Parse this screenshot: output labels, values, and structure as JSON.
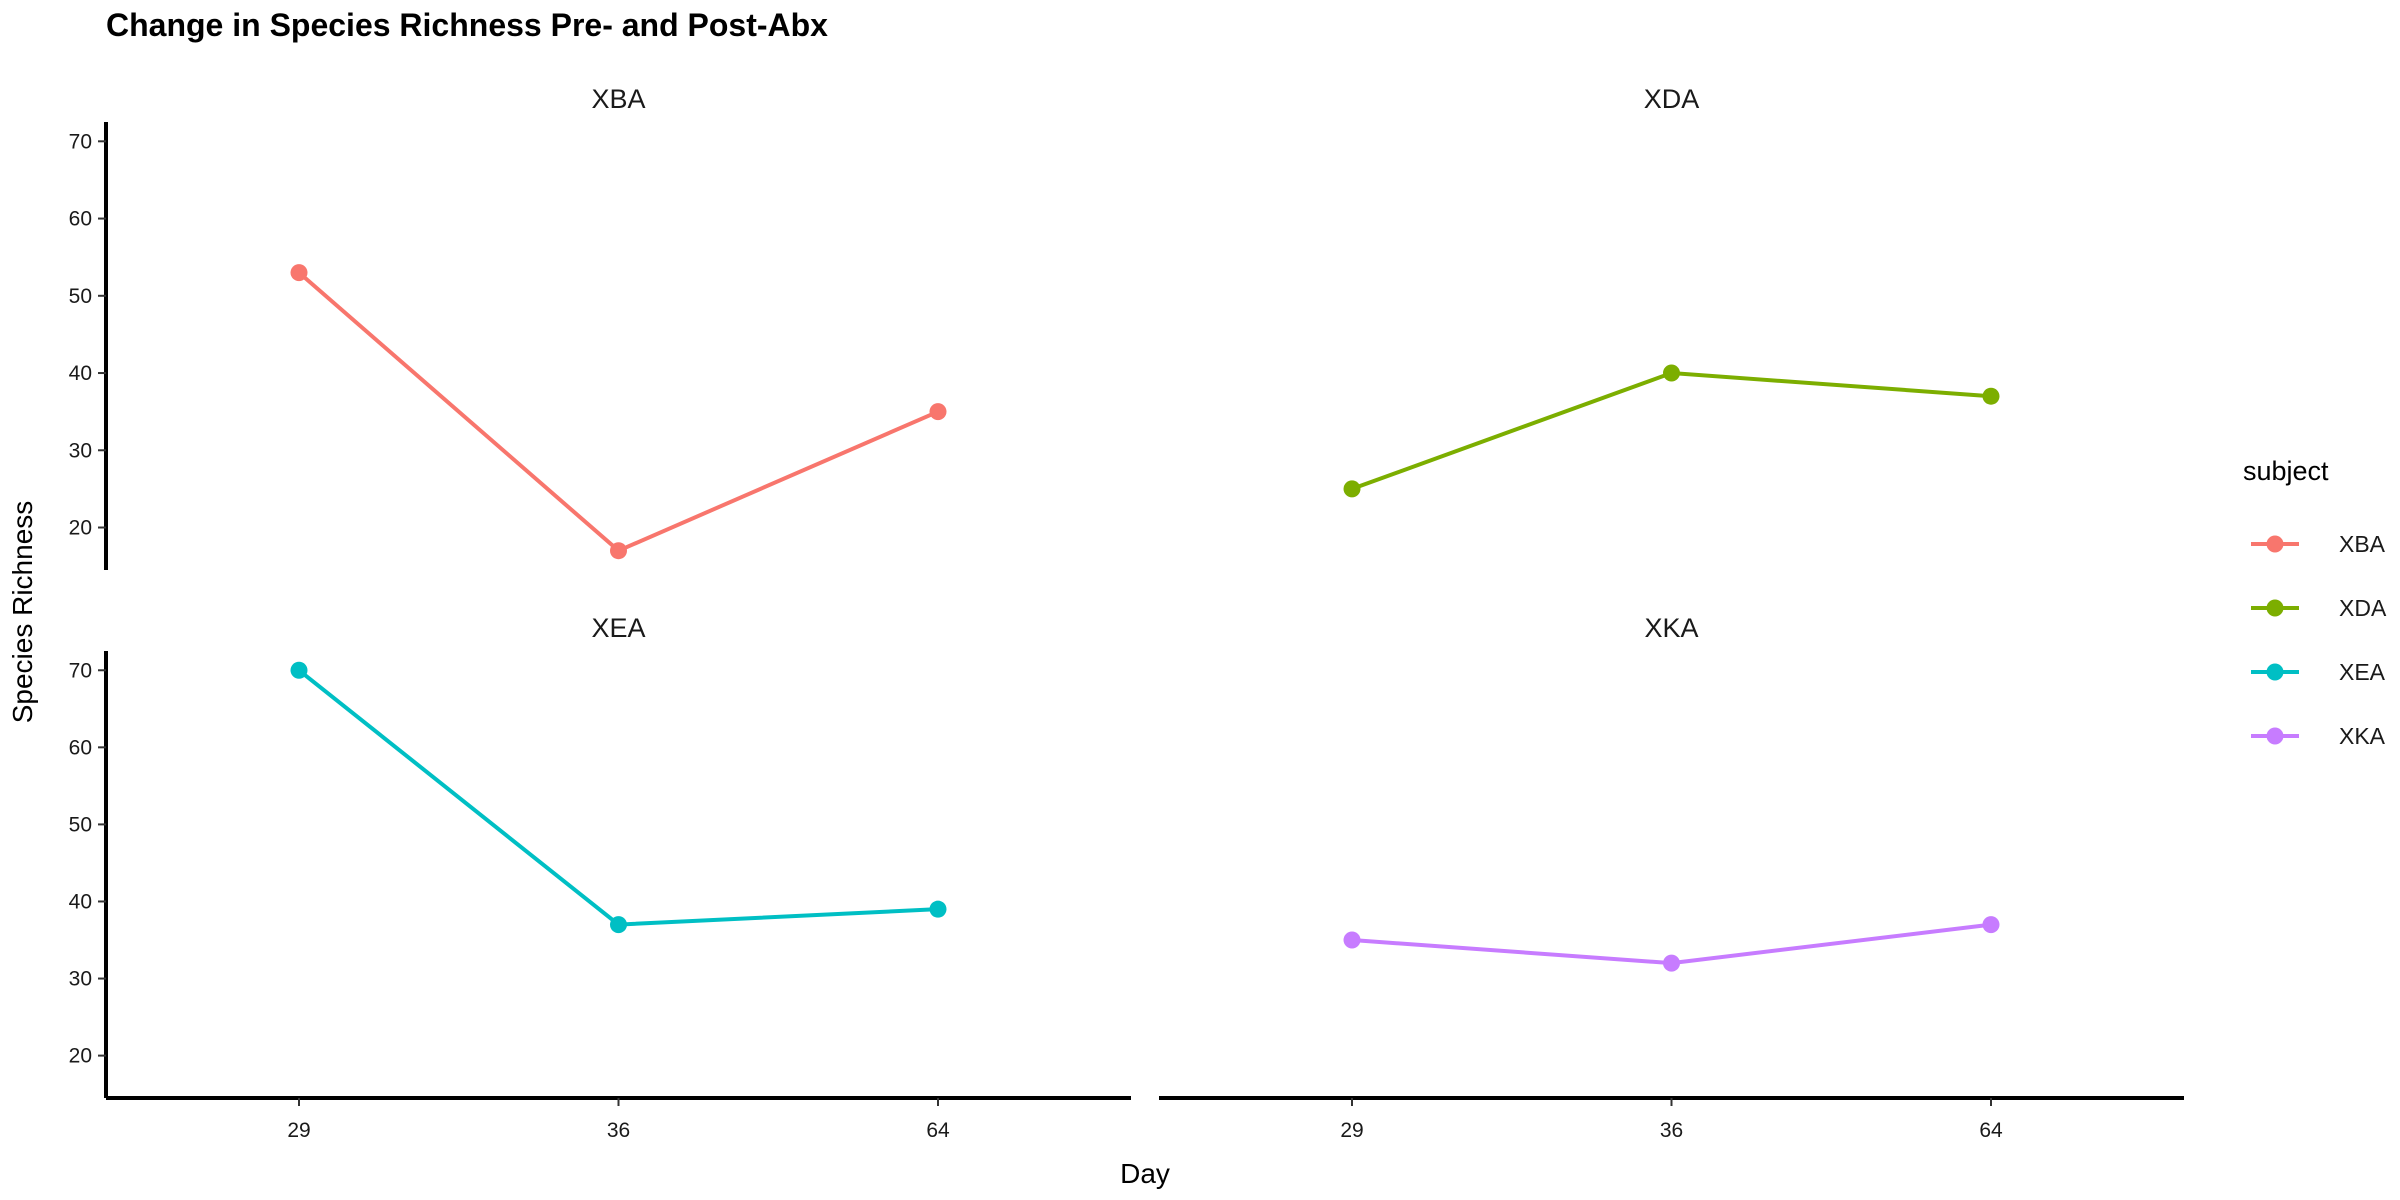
{
  "chart_data": {
    "type": "line",
    "title": "Change in Species Richness Pre- and Post-Abx",
    "xlabel": "Day",
    "ylabel": "Species Richness",
    "categories": [
      "29",
      "36",
      "64"
    ],
    "yticks": [
      20,
      30,
      40,
      50,
      60,
      70
    ],
    "ylim": [
      14.5,
      72.5
    ],
    "grid": false,
    "facet_layout": "2x2",
    "legend": {
      "title": "subject",
      "placement": "right"
    },
    "series": [
      {
        "name": "XBA",
        "color": "#F8766D",
        "values": [
          53,
          17,
          35
        ]
      },
      {
        "name": "XDA",
        "color": "#7CAE00",
        "values": [
          25,
          40,
          37
        ]
      },
      {
        "name": "XEA",
        "color": "#00BFC4",
        "values": [
          70,
          37,
          39
        ]
      },
      {
        "name": "XKA",
        "color": "#C77CFF",
        "values": [
          35,
          32,
          37
        ]
      }
    ]
  }
}
